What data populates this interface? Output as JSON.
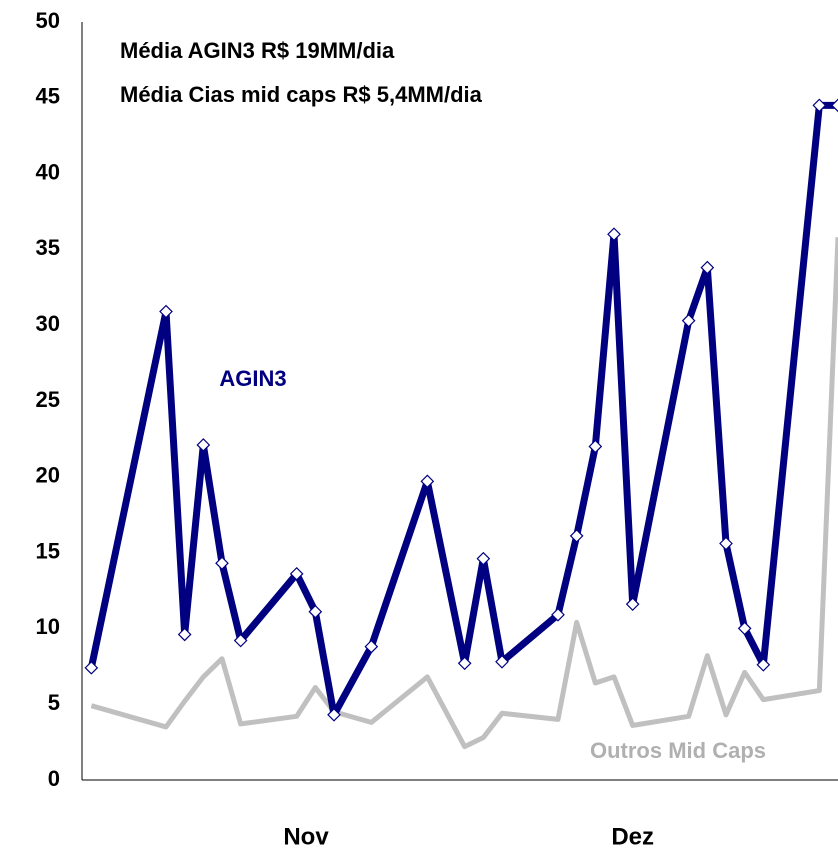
{
  "chart_data": {
    "type": "line",
    "annotations": [
      "Média AGIN3 R$ 19MM/dia",
      "Média Cias mid caps R$ 5,4MM/dia"
    ],
    "x": [
      0,
      4,
      5,
      6,
      7,
      8,
      11,
      12,
      13,
      15,
      18,
      20,
      21,
      22,
      25,
      26,
      27,
      28,
      29,
      32,
      33,
      34,
      35,
      36,
      39,
      40
    ],
    "series": [
      {
        "name": "Outros Mid Caps",
        "color": "#c0c0c0",
        "marker": false,
        "values": [
          4.9,
          3.5,
          5.2,
          6.8,
          8.0,
          3.7,
          4.2,
          6.1,
          4.5,
          3.8,
          6.8,
          2.2,
          2.8,
          4.4,
          4.0,
          10.4,
          6.4,
          6.8,
          3.6,
          4.2,
          8.2,
          4.3,
          7.1,
          5.3,
          5.9,
          35.8
        ]
      },
      {
        "name": "AGIN3",
        "color": "#000080",
        "marker": true,
        "values": [
          7.4,
          30.9,
          9.6,
          22.1,
          14.3,
          9.2,
          13.6,
          11.1,
          4.3,
          8.8,
          19.7,
          7.7,
          14.6,
          7.8,
          10.9,
          16.1,
          22.0,
          36.0,
          11.6,
          30.3,
          33.8,
          15.6,
          10.0,
          7.6,
          44.5,
          44.5
        ]
      }
    ],
    "xlim": [
      -0.5,
      40
    ],
    "xticks": [
      {
        "value": 11.5,
        "label": "Nov"
      },
      {
        "value": 29,
        "label": "Dez"
      }
    ],
    "ylim": [
      0,
      50
    ],
    "yticks": [
      0,
      5,
      10,
      15,
      20,
      25,
      30,
      35,
      40,
      45,
      50
    ],
    "grid": false
  }
}
